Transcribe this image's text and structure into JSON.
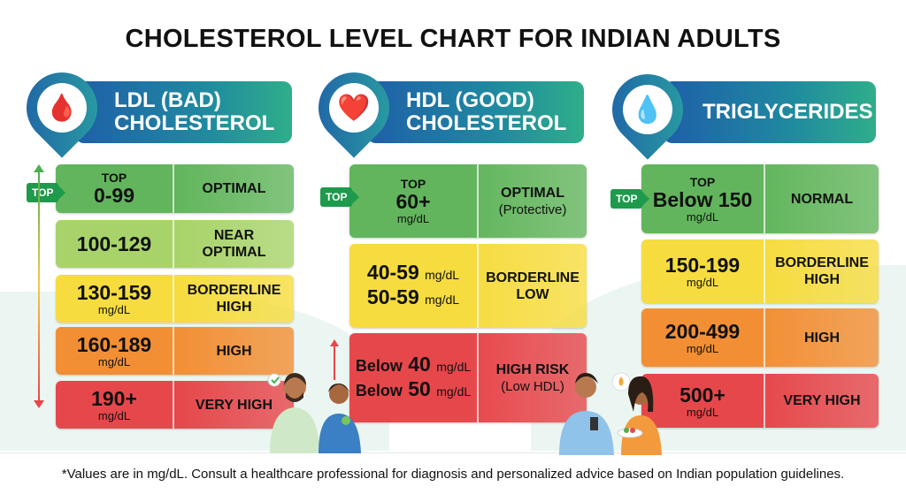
{
  "title": "CHOLESTEROL LEVEL CHART FOR INDIAN ADULTS",
  "top_badge": "TOP",
  "colors": {
    "green": "#62b55c",
    "lightgreen": "#a8d36a",
    "yellow": "#f6dc3f",
    "orange": "#f28f35",
    "red": "#e6474b"
  },
  "columns": [
    {
      "id": "ldl",
      "icon": "artery-icon",
      "title": [
        "LDL (BAD)",
        "CHOLESTEROL"
      ],
      "rows": [
        {
          "top": "TOP",
          "lines": [
            {
              "num": "0-99"
            }
          ],
          "label": [
            "OPTIMAL"
          ],
          "color": "green"
        },
        {
          "lines": [
            {
              "num": "100-129"
            }
          ],
          "label": [
            "NEAR",
            "OPTIMAL"
          ],
          "color": "lightgreen"
        },
        {
          "lines": [
            {
              "num": "130-159"
            }
          ],
          "unit": "mg/dL",
          "label": [
            "BORDERLINE",
            "HIGH"
          ],
          "color": "yellow"
        },
        {
          "lines": [
            {
              "num": "160-189"
            }
          ],
          "unit": "mg/dL",
          "label": [
            "HIGH"
          ],
          "color": "orange"
        },
        {
          "lines": [
            {
              "num": "190+"
            }
          ],
          "unit": "mg/dL",
          "label": [
            "VERY HIGH"
          ],
          "color": "red"
        }
      ]
    },
    {
      "id": "hdl",
      "icon": "heart-icon",
      "title": [
        "HDL (GOOD)",
        "CHOLESTEROL"
      ],
      "rows": [
        {
          "top": "TOP",
          "lines": [
            {
              "num": "60+"
            }
          ],
          "unit": "mg/dL",
          "label": [
            "OPTIMAL"
          ],
          "sub": "(Protective)",
          "color": "green"
        },
        {
          "lines": [
            {
              "num": "40-59",
              "unit": "mg/dL"
            },
            {
              "num": "50-59",
              "unit": "mg/dL"
            }
          ],
          "label": [
            "BORDERLINE",
            "LOW"
          ],
          "color": "yellow"
        },
        {
          "lines": [
            {
              "pre": "Below",
              "num": "40",
              "unit": "mg/dL"
            },
            {
              "pre": "Below",
              "num": "50",
              "unit": "mg/dL"
            }
          ],
          "label": [
            "HIGH RISK"
          ],
          "sub": "(Low HDL)",
          "color": "red"
        }
      ]
    },
    {
      "id": "tg",
      "icon": "oil-drops-icon",
      "title": [
        "TRIGLYCERIDES"
      ],
      "rows": [
        {
          "top": "TOP",
          "lines": [
            {
              "num": "Below 150"
            }
          ],
          "unit": "mg/dL",
          "label": [
            "NORMAL"
          ],
          "color": "green"
        },
        {
          "lines": [
            {
              "num": "150-199"
            }
          ],
          "unit": "mg/dL",
          "label": [
            "BORDERLINE",
            "HIGH"
          ],
          "color": "yellow"
        },
        {
          "lines": [
            {
              "num": "200-499"
            }
          ],
          "unit": "mg/dL",
          "label": [
            "HIGH"
          ],
          "color": "orange"
        },
        {
          "lines": [
            {
              "num": "500+"
            }
          ],
          "unit": "mg/dL",
          "label": [
            "VERY HIGH"
          ],
          "color": "red"
        }
      ]
    }
  ],
  "footer": "*Values are in mg/dL. Consult a healthcare professional for diagnosis and personalized advice based on Indian population guidelines."
}
